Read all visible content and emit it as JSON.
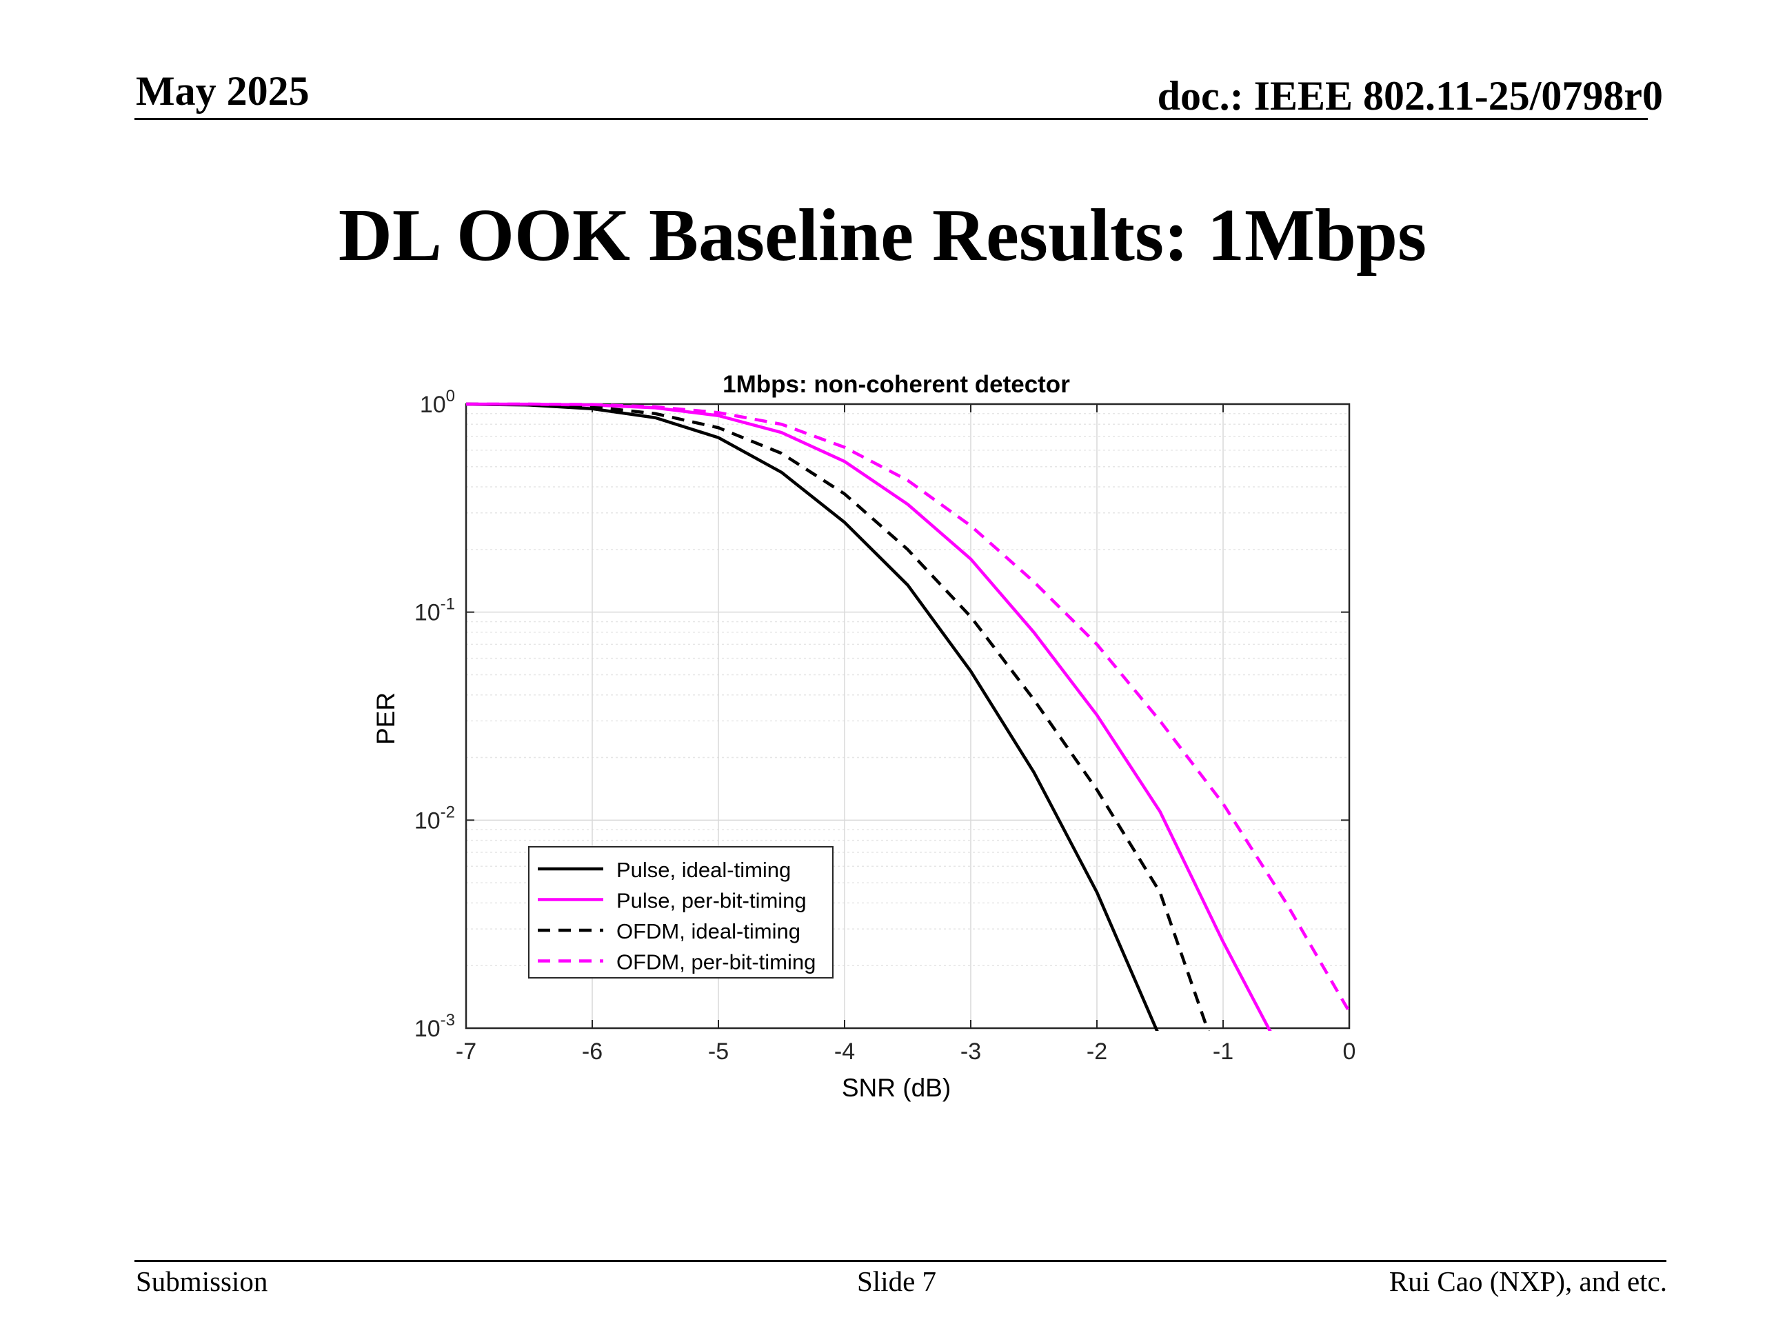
{
  "header": {
    "date": "May 2025",
    "doc_id": "doc.: IEEE 802.11-25/0798r0"
  },
  "slide": {
    "title": "DL OOK Baseline Results: 1Mbps"
  },
  "footer": {
    "left": "Submission",
    "center": "Slide 7",
    "right": "Rui Cao (NXP), and etc."
  },
  "colors": {
    "black_series": "#000000",
    "magenta_series": "#ff00ff",
    "grid": "#d9d9d9"
  },
  "chart_data": {
    "type": "line",
    "title": "1Mbps: non-coherent detector",
    "xlabel": "SNR (dB)",
    "ylabel": "PER",
    "xlim": [
      -7,
      0
    ],
    "ylim": [
      0.001,
      1
    ],
    "yscale": "log",
    "grid": true,
    "legend_position": "bottom-left",
    "x_ticks": [
      "-7",
      "-6",
      "-5",
      "-4",
      "-3",
      "-2",
      "-1",
      "0"
    ],
    "y_ticks": [
      {
        "base": "10",
        "exp": "0",
        "value": 1
      },
      {
        "base": "10",
        "exp": "-1",
        "value": 0.1
      },
      {
        "base": "10",
        "exp": "-2",
        "value": 0.01
      },
      {
        "base": "10",
        "exp": "-3",
        "value": 0.001
      }
    ],
    "series": [
      {
        "name": "Pulse, ideal-timing",
        "color": "#000000",
        "dash": "solid",
        "x": [
          -7,
          -6.5,
          -6,
          -5.5,
          -5,
          -4.5,
          -4,
          -3.5,
          -3,
          -2.5,
          -2,
          -1.5
        ],
        "y": [
          0.999,
          0.99,
          0.95,
          0.86,
          0.69,
          0.47,
          0.27,
          0.135,
          0.052,
          0.017,
          0.0045,
          0.0009
        ]
      },
      {
        "name": "Pulse, per-bit-timing",
        "color": "#ff00ff",
        "dash": "solid",
        "x": [
          -7,
          -6.5,
          -6,
          -5.5,
          -5,
          -4.5,
          -4,
          -3.5,
          -3,
          -2.5,
          -2,
          -1.5,
          -1,
          -0.6
        ],
        "y": [
          1.0,
          0.999,
          0.99,
          0.96,
          0.88,
          0.73,
          0.53,
          0.33,
          0.18,
          0.08,
          0.032,
          0.011,
          0.0026,
          0.0009
        ]
      },
      {
        "name": "OFDM, ideal-timing",
        "color": "#000000",
        "dash": "dashed",
        "x": [
          -7,
          -6.5,
          -6,
          -5.5,
          -5,
          -4.5,
          -4,
          -3.5,
          -3,
          -2.5,
          -2,
          -1.5,
          -1.1
        ],
        "y": [
          1.0,
          0.995,
          0.97,
          0.9,
          0.77,
          0.58,
          0.37,
          0.2,
          0.095,
          0.038,
          0.014,
          0.0045,
          0.0009
        ]
      },
      {
        "name": "OFDM, per-bit-timing",
        "color": "#ff00ff",
        "dash": "dashed",
        "x": [
          -7,
          -6.5,
          -6,
          -5.5,
          -5,
          -4.5,
          -4,
          -3.5,
          -3,
          -2.5,
          -2,
          -1.5,
          -1,
          -0.5,
          0
        ],
        "y": [
          1.0,
          1.0,
          0.995,
          0.97,
          0.91,
          0.8,
          0.62,
          0.43,
          0.26,
          0.14,
          0.07,
          0.03,
          0.012,
          0.004,
          0.0012
        ]
      }
    ]
  }
}
